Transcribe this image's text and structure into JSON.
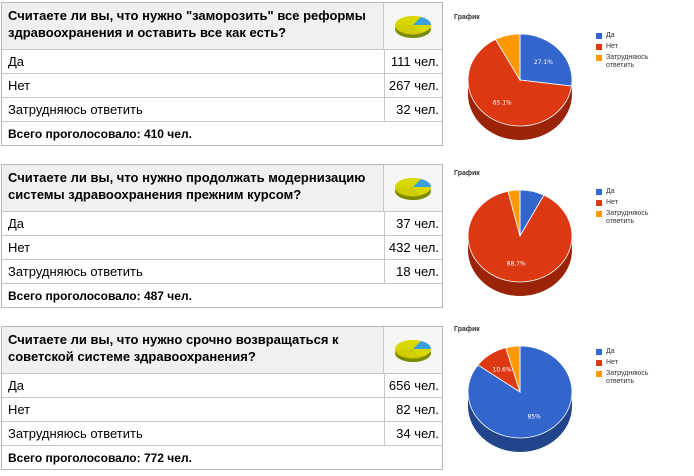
{
  "polls": [
    {
      "question": "Считаете ли вы, что нужно \"заморозить\" все реформы здравоохранения и оставить все как есть?",
      "answers": [
        {
          "label": "Да",
          "count": "111 чел."
        },
        {
          "label": "Нет",
          "count": "267 чел."
        },
        {
          "label": "Затрудняюсь ответить",
          "count": "32 чел."
        }
      ],
      "total": "Всего проголосовало: 410 чел.",
      "chart": {
        "title": "График",
        "legend": [
          "Да",
          "Нет",
          "Затрудняюсь ответить"
        ],
        "slice_labels": [
          "27.1%",
          "65.1%",
          ""
        ]
      }
    },
    {
      "question": "Считаете ли вы, что нужно продолжать модернизацию системы здравоохранения прежним курсом?",
      "answers": [
        {
          "label": "Да",
          "count": "37 чел."
        },
        {
          "label": "Нет",
          "count": "432 чел."
        },
        {
          "label": "Затрудняюсь ответить",
          "count": "18 чел."
        }
      ],
      "total": "Всего проголосовало: 487 чел.",
      "chart": {
        "title": "График",
        "legend": [
          "Да",
          "Нет",
          "Затрудняюсь ответить"
        ],
        "slice_labels": [
          "",
          "88.7%",
          ""
        ]
      }
    },
    {
      "question": "Считаете ли вы, что нужно срочно возвращаться к советской системе здравоохранения?",
      "answers": [
        {
          "label": "Да",
          "count": "656 чел."
        },
        {
          "label": "Нет",
          "count": "82 чел."
        },
        {
          "label": "Затрудняюсь ответить",
          "count": "34 чел."
        }
      ],
      "total": "Всего проголосовало: 772 чел.",
      "chart": {
        "title": "График",
        "legend": [
          "Да",
          "Нет",
          "Затрудняюсь ответить"
        ],
        "slice_labels": [
          "85%",
          "10.6%",
          ""
        ]
      }
    }
  ],
  "chart_data": [
    {
      "type": "pie",
      "title": "График",
      "categories": [
        "Да",
        "Нет",
        "Затрудняюсь ответить"
      ],
      "values": [
        27.1,
        65.1,
        7.8
      ],
      "legend": "right"
    },
    {
      "type": "pie",
      "title": "График",
      "categories": [
        "Да",
        "Нет",
        "Затрудняюсь ответить"
      ],
      "values": [
        7.6,
        88.7,
        3.7
      ],
      "legend": "right"
    },
    {
      "type": "pie",
      "title": "График",
      "categories": [
        "Да",
        "Нет",
        "Затрудняюсь ответить"
      ],
      "values": [
        85,
        10.6,
        4.4
      ],
      "legend": "right"
    }
  ],
  "colors": {
    "yes": "#3366cc",
    "no": "#dc3912",
    "unsure": "#ff9900",
    "yes_side": "#22448c",
    "no_side": "#9a2308",
    "unsure_side": "#b36b00"
  },
  "icon": "pie-chart-icon"
}
